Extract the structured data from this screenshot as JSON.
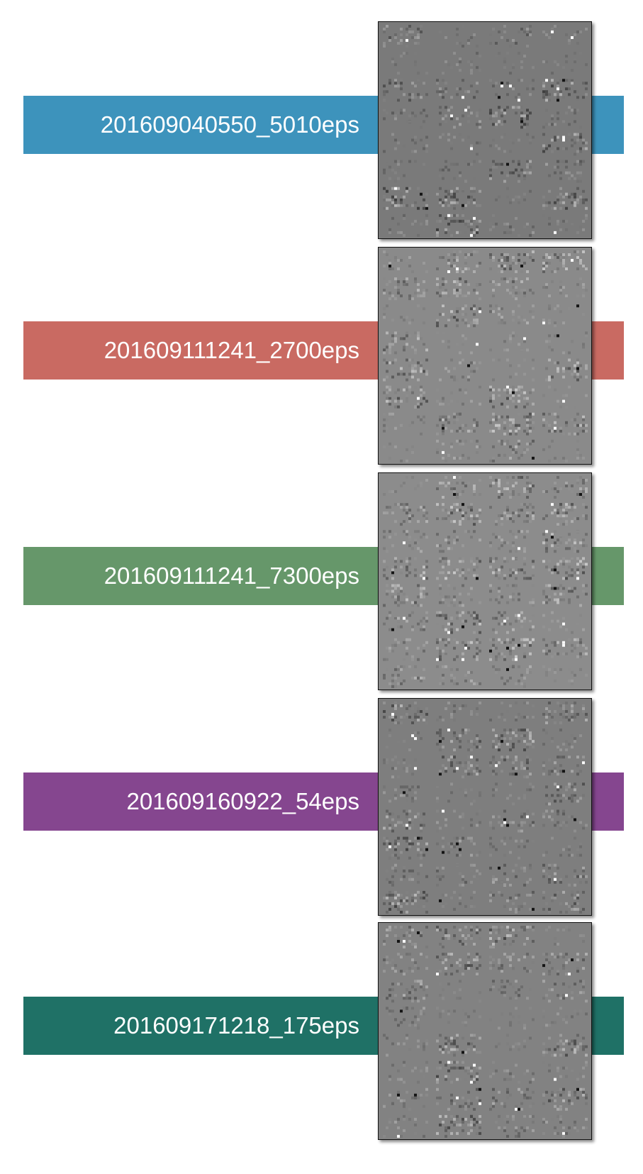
{
  "rows": [
    {
      "label": "201609040550_5010eps",
      "color": "#3d93bc",
      "tone": "#7a7a7a",
      "variant": 1
    },
    {
      "label": "201609111241_2700eps",
      "color": "#c96a62",
      "tone": "#8a8a8a",
      "variant": 2
    },
    {
      "label": "201609111241_7300eps",
      "color": "#66976a",
      "tone": "#8c8c8c",
      "variant": 3
    },
    {
      "label": "201609160922_54eps",
      "color": "#85468f",
      "tone": "#7e7e7e",
      "variant": 4
    },
    {
      "label": "201609171218_175eps",
      "color": "#1f7166",
      "tone": "#828282",
      "variant": 5
    }
  ]
}
